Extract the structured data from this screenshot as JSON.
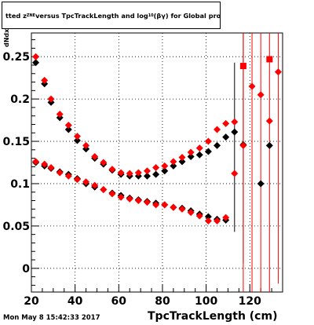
{
  "title": {
    "prefix": "tted  z",
    "subscript": "ZNE",
    "middle": " versus TpcTrackLength and log",
    "log_subscript": "10",
    "suffix": "(βγ) for Global proton"
  },
  "timestamp": "Mon May  8 15:42:33 2017",
  "chart_data": {
    "type": "scatter",
    "title": "",
    "xlabel": "TpcTrackLength (cm)",
    "ylabel": "dNdx",
    "xlim": [
      20,
      135
    ],
    "ylim": [
      -0.028,
      0.278
    ],
    "x_ticks": [
      20,
      40,
      60,
      80,
      100,
      120
    ],
    "y_ticks": [
      0,
      0.05,
      0.1,
      0.15,
      0.2,
      0.25
    ],
    "x_tick_labels": [
      "20",
      "40",
      "60",
      "80",
      "100",
      "120"
    ],
    "y_tick_labels": [
      "0",
      "0.05",
      "0.1",
      "0.15",
      "0.2",
      "0.25"
    ],
    "grid": true,
    "series": [
      {
        "marker": "diamond",
        "color": "#000000",
        "points": [
          [
            22,
            0.243
          ],
          [
            26,
            0.218
          ],
          [
            29,
            0.196
          ],
          [
            33,
            0.178
          ],
          [
            37,
            0.164
          ],
          [
            41,
            0.151
          ],
          [
            45,
            0.141
          ],
          [
            49,
            0.13
          ],
          [
            53,
            0.123
          ],
          [
            57,
            0.116
          ],
          [
            61,
            0.111
          ],
          [
            65,
            0.109
          ],
          [
            69,
            0.109
          ],
          [
            73,
            0.109
          ],
          [
            77,
            0.111
          ],
          [
            81,
            0.115
          ],
          [
            85,
            0.121
          ],
          [
            89,
            0.126
          ],
          [
            93,
            0.132
          ],
          [
            97,
            0.134
          ],
          [
            101,
            0.138
          ],
          [
            105,
            0.145
          ],
          [
            109,
            0.155
          ],
          [
            113,
            0.161
          ],
          [
            117,
            0.146
          ],
          [
            125,
            0.1
          ],
          [
            129,
            0.145
          ],
          [
            22,
            0.125
          ],
          [
            26,
            0.121
          ],
          [
            29,
            0.118
          ],
          [
            33,
            0.114
          ],
          [
            37,
            0.111
          ],
          [
            41,
            0.106
          ],
          [
            45,
            0.1
          ],
          [
            49,
            0.096
          ],
          [
            53,
            0.093
          ],
          [
            57,
            0.089
          ],
          [
            61,
            0.086
          ],
          [
            65,
            0.083
          ],
          [
            69,
            0.081
          ],
          [
            73,
            0.079
          ],
          [
            77,
            0.077
          ],
          [
            81,
            0.075
          ],
          [
            85,
            0.072
          ],
          [
            89,
            0.071
          ],
          [
            93,
            0.068
          ],
          [
            97,
            0.064
          ],
          [
            101,
            0.061
          ],
          [
            105,
            0.058
          ],
          [
            109,
            0.057
          ]
        ],
        "errors": [
          [
            113,
            0.143,
            0.1
          ],
          [
            117,
            0.146,
            0.14
          ]
        ]
      },
      {
        "marker": "diamond",
        "color": "#ff0000",
        "points": [
          [
            22,
            0.25
          ],
          [
            26,
            0.222
          ],
          [
            29,
            0.2
          ],
          [
            33,
            0.182
          ],
          [
            37,
            0.169
          ],
          [
            41,
            0.156
          ],
          [
            45,
            0.145
          ],
          [
            49,
            0.132
          ],
          [
            53,
            0.125
          ],
          [
            57,
            0.117
          ],
          [
            61,
            0.113
          ],
          [
            65,
            0.112
          ],
          [
            69,
            0.113
          ],
          [
            73,
            0.115
          ],
          [
            77,
            0.119
          ],
          [
            81,
            0.121
          ],
          [
            85,
            0.126
          ],
          [
            89,
            0.131
          ],
          [
            93,
            0.137
          ],
          [
            97,
            0.142
          ],
          [
            101,
            0.15
          ],
          [
            105,
            0.164
          ],
          [
            109,
            0.171
          ],
          [
            113,
            0.173
          ],
          [
            117,
            0.145
          ],
          [
            121,
            0.215
          ],
          [
            125,
            0.205
          ],
          [
            129,
            0.174
          ],
          [
            133,
            0.232
          ],
          [
            22,
            0.126
          ],
          [
            26,
            0.123
          ],
          [
            29,
            0.119
          ],
          [
            33,
            0.113
          ],
          [
            37,
            0.109
          ],
          [
            41,
            0.105
          ],
          [
            45,
            0.102
          ],
          [
            49,
            0.098
          ],
          [
            53,
            0.093
          ],
          [
            57,
            0.088
          ],
          [
            61,
            0.084
          ],
          [
            65,
            0.082
          ],
          [
            69,
            0.08
          ],
          [
            73,
            0.078
          ],
          [
            77,
            0.075
          ],
          [
            81,
            0.075
          ],
          [
            85,
            0.072
          ],
          [
            89,
            0.07
          ],
          [
            93,
            0.066
          ],
          [
            97,
            0.062
          ],
          [
            101,
            0.056
          ],
          [
            105,
            0.056
          ],
          [
            109,
            0.06
          ],
          [
            113,
            0.112
          ]
        ],
        "squares": [
          [
            117,
            0.239
          ],
          [
            129,
            0.247
          ]
        ],
        "errors": [
          [
            117,
            0.145,
            0.2
          ],
          [
            121,
            0.215,
            0.25
          ],
          [
            125,
            0.205,
            0.25
          ],
          [
            129,
            0.174,
            0.25
          ],
          [
            133,
            0.232,
            0.25
          ]
        ]
      }
    ]
  }
}
